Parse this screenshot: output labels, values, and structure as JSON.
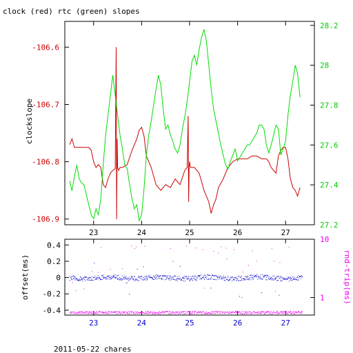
{
  "chart_data": [
    {
      "type": "line",
      "title": "clock (red) rtc (green) slopes",
      "ylabel": "clockslope",
      "xlim": [
        22.4,
        27.6
      ],
      "x_ticks": [
        23,
        24,
        25,
        26,
        27
      ],
      "y_left_lim": [
        -106.91,
        -106.555
      ],
      "y_left_ticks": [
        -106.6,
        -106.7,
        -106.8,
        -106.9
      ],
      "y_right_lim": [
        27.2,
        28.22
      ],
      "y_right_ticks": [
        27.2,
        27.4,
        27.6,
        27.8,
        28,
        28.2
      ],
      "series": [
        {
          "axis": "left",
          "color": "#cc0000",
          "x": [
            22.5,
            22.55,
            22.6,
            22.7,
            22.8,
            22.9,
            22.95,
            23.0,
            23.05,
            23.1,
            23.15,
            23.2,
            23.25,
            23.3,
            23.35,
            23.4,
            23.45,
            23.47,
            23.48,
            23.49,
            23.5,
            23.52,
            23.55,
            23.6,
            23.7,
            23.8,
            23.9,
            23.95,
            24.0,
            24.05,
            24.1,
            24.2,
            24.3,
            24.4,
            24.5,
            24.6,
            24.7,
            24.8,
            24.9,
            24.95,
            24.97,
            24.98,
            24.99,
            25.0,
            25.02,
            25.05,
            25.1,
            25.2,
            25.3,
            25.4,
            25.45,
            25.5,
            25.55,
            25.6,
            25.7,
            25.8,
            25.9,
            26.0,
            26.1,
            26.2,
            26.3,
            26.4,
            26.5,
            26.6,
            26.65,
            26.7,
            26.75,
            26.8,
            26.85,
            26.9,
            26.95,
            27.0,
            27.05,
            27.1,
            27.15,
            27.2,
            27.25,
            27.3
          ],
          "y": [
            -106.77,
            -106.76,
            -106.775,
            -106.775,
            -106.775,
            -106.775,
            -106.78,
            -106.8,
            -106.81,
            -106.805,
            -106.81,
            -106.84,
            -106.845,
            -106.83,
            -106.82,
            -106.815,
            -106.812,
            -106.6,
            -106.9,
            -106.76,
            -106.81,
            -106.815,
            -106.81,
            -106.81,
            -106.805,
            -106.78,
            -106.76,
            -106.745,
            -106.74,
            -106.755,
            -106.79,
            -106.81,
            -106.84,
            -106.85,
            -106.84,
            -106.845,
            -106.83,
            -106.84,
            -106.815,
            -106.81,
            -106.72,
            -106.87,
            -106.81,
            -106.8,
            -106.81,
            -106.81,
            -106.81,
            -106.82,
            -106.85,
            -106.87,
            -106.89,
            -106.875,
            -106.865,
            -106.845,
            -106.83,
            -106.81,
            -106.8,
            -106.795,
            -106.795,
            -106.795,
            -106.79,
            -106.79,
            -106.795,
            -106.795,
            -106.8,
            -106.81,
            -106.815,
            -106.82,
            -106.79,
            -106.78,
            -106.775,
            -106.775,
            -106.795,
            -106.83,
            -106.845,
            -106.85,
            -106.86,
            -106.845
          ]
        },
        {
          "axis": "right",
          "color": "#00dd00",
          "x": [
            22.5,
            22.55,
            22.6,
            22.65,
            22.7,
            22.75,
            22.8,
            22.85,
            22.9,
            22.95,
            23.0,
            23.05,
            23.1,
            23.15,
            23.2,
            23.25,
            23.3,
            23.35,
            23.4,
            23.45,
            23.5,
            23.55,
            23.6,
            23.65,
            23.7,
            23.75,
            23.8,
            23.85,
            23.9,
            23.95,
            24.0,
            24.05,
            24.1,
            24.15,
            24.2,
            24.25,
            24.3,
            24.35,
            24.4,
            24.45,
            24.5,
            24.55,
            24.6,
            24.65,
            24.7,
            24.75,
            24.8,
            24.85,
            24.9,
            24.95,
            25.0,
            25.05,
            25.1,
            25.15,
            25.2,
            25.25,
            25.3,
            25.35,
            25.4,
            25.45,
            25.5,
            25.55,
            25.6,
            25.65,
            25.7,
            25.75,
            25.8,
            25.85,
            25.9,
            25.95,
            26.0,
            26.05,
            26.1,
            26.15,
            26.2,
            26.25,
            26.3,
            26.35,
            26.4,
            26.45,
            26.5,
            26.55,
            26.6,
            26.65,
            26.7,
            26.75,
            26.8,
            26.85,
            26.9,
            26.95,
            27.0,
            27.05,
            27.1,
            27.15,
            27.2,
            27.25,
            27.3
          ],
          "y": [
            27.42,
            27.37,
            27.44,
            27.5,
            27.43,
            27.41,
            27.4,
            27.35,
            27.3,
            27.25,
            27.23,
            27.28,
            27.25,
            27.33,
            27.5,
            27.65,
            27.75,
            27.85,
            27.95,
            27.85,
            27.75,
            27.65,
            27.58,
            27.5,
            27.48,
            27.4,
            27.33,
            27.28,
            27.3,
            27.22,
            27.25,
            27.38,
            27.55,
            27.65,
            27.72,
            27.8,
            27.88,
            27.95,
            27.9,
            27.78,
            27.68,
            27.7,
            27.65,
            27.62,
            27.58,
            27.56,
            27.6,
            27.68,
            27.74,
            27.82,
            27.92,
            28.02,
            28.05,
            28.0,
            28.08,
            28.14,
            28.18,
            28.12,
            28.0,
            27.88,
            27.78,
            27.72,
            27.66,
            27.6,
            27.55,
            27.5,
            27.48,
            27.52,
            27.55,
            27.58,
            27.52,
            27.54,
            27.56,
            27.58,
            27.6,
            27.6,
            27.62,
            27.64,
            27.66,
            27.7,
            27.7,
            27.68,
            27.6,
            27.56,
            27.6,
            27.65,
            27.7,
            27.68,
            27.55,
            27.58,
            27.62,
            27.75,
            27.85,
            27.92,
            28.0,
            27.96,
            27.84
          ]
        }
      ]
    },
    {
      "type": "scatter",
      "xlabel": "2011-05-22 chares",
      "ylabel": "offset(ms)",
      "y2label": "rnd-trip(ms)",
      "xlim": [
        22.4,
        27.6
      ],
      "x_ticks": [
        23,
        24,
        25,
        26,
        27
      ],
      "y_left_lim": [
        -0.46,
        0.47
      ],
      "y_left_ticks": [
        0.4,
        0.2,
        0,
        -0.2,
        -0.4
      ],
      "y_right_lim": [
        0.5,
        10
      ],
      "y_right_scale": "log",
      "y_right_ticks": [
        1,
        10
      ],
      "series": [
        {
          "axis": "left",
          "color": "#0000cc",
          "pattern": "offset points clustered near 0 ms, band ±0.03"
        },
        {
          "axis": "right",
          "color": "#ee00ee",
          "pattern": "round-trip points clustered near 0.55 ms with sparse outliers 1.5–8 ms"
        }
      ]
    }
  ]
}
